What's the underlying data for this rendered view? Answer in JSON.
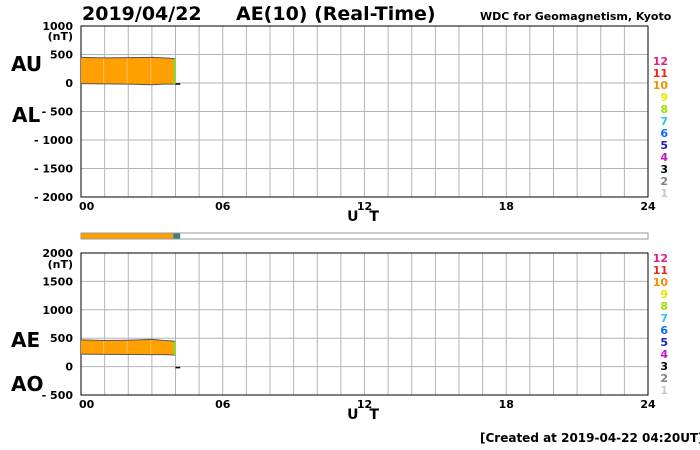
{
  "header": {
    "date": "2019/04/22",
    "title": "AE(10) (Real-Time)",
    "organization": "WDC for Geomagnetism, Kyoto"
  },
  "footer": {
    "created": "[Created at 2019-04-22 04:20UT]"
  },
  "colors": {
    "bar": "#ffa000",
    "last_segment": "#80e020",
    "station_bar_gap": "#408080",
    "grid": "#b4b4b4"
  },
  "station_legend": [
    {
      "label": "12",
      "color": "#e01e84"
    },
    {
      "label": "11",
      "color": "#e8281e"
    },
    {
      "label": "10",
      "color": "#f09000"
    },
    {
      "label": "9",
      "color": "#e8e800"
    },
    {
      "label": "8",
      "color": "#a0e000"
    },
    {
      "label": "7",
      "color": "#28c8e8"
    },
    {
      "label": "6",
      "color": "#0a6cf0"
    },
    {
      "label": "5",
      "color": "#2020b4"
    },
    {
      "label": "4",
      "color": "#c814c8"
    },
    {
      "label": "3",
      "color": "#000000"
    },
    {
      "label": "2",
      "color": "#808080"
    },
    {
      "label": "1",
      "color": "#c8c8c8"
    }
  ],
  "chart_data": [
    {
      "type": "area",
      "panel": "AU/AL",
      "ylabels": [
        "AU",
        "AL"
      ],
      "yunit": "(nT)",
      "xlabel": "U T",
      "ylim": [
        -2000,
        1000
      ],
      "yticks": [
        1000,
        500,
        0,
        -500,
        -1000,
        -1500,
        -2000
      ],
      "ytick_labels": [
        "1000",
        "500",
        "0",
        "- 500",
        "- 1000",
        "- 1500",
        "- 2000"
      ],
      "xlim": [
        0,
        24
      ],
      "xticks": [
        0,
        6,
        12,
        18,
        24
      ],
      "xtick_labels": [
        "00",
        "06",
        "12",
        "18",
        "24"
      ],
      "grid": true,
      "legend": "right",
      "series": [
        {
          "name": "AU",
          "x": [
            0,
            1,
            2,
            3,
            3.5,
            3.9,
            4.0
          ],
          "values": [
            450,
            440,
            445,
            450,
            440,
            430,
            420
          ]
        },
        {
          "name": "AL",
          "x": [
            0,
            1,
            2,
            3,
            3.5,
            3.9,
            4.0
          ],
          "values": [
            -10,
            -15,
            -20,
            -30,
            -20,
            -20,
            -15
          ]
        },
        {
          "name": "trailing",
          "x": [
            4.0,
            4.2
          ],
          "values": [
            0,
            0
          ]
        }
      ]
    },
    {
      "type": "area",
      "panel": "AE/AO",
      "ylabels": [
        "AE",
        "AO"
      ],
      "yunit": "(nT)",
      "xlabel": "U T",
      "ylim": [
        -500,
        2000
      ],
      "yticks": [
        2000,
        1500,
        1000,
        500,
        0,
        -500
      ],
      "ytick_labels": [
        "2000",
        "1500",
        "1000",
        "500",
        "0",
        "- 500"
      ],
      "xlim": [
        0,
        24
      ],
      "xticks": [
        0,
        6,
        12,
        18,
        24
      ],
      "xtick_labels": [
        "00",
        "06",
        "12",
        "18",
        "24"
      ],
      "grid": true,
      "legend": "right",
      "series": [
        {
          "name": "AE",
          "x": [
            0,
            1,
            2,
            3,
            3.5,
            3.9,
            4.0
          ],
          "values": [
            470,
            460,
            465,
            480,
            460,
            450,
            440
          ]
        },
        {
          "name": "AO",
          "x": [
            0,
            1,
            2,
            3,
            3.5,
            3.9,
            4.0
          ],
          "values": [
            220,
            215,
            212,
            210,
            210,
            205,
            200
          ]
        },
        {
          "name": "trailing",
          "x": [
            4.0,
            4.2
          ],
          "values": [
            0,
            0
          ]
        }
      ]
    }
  ],
  "station_bar": {
    "xlim": [
      0,
      24
    ],
    "segments": [
      {
        "from": 0,
        "to": 3.9,
        "color": "#ffa000"
      },
      {
        "from": 3.9,
        "to": 4.2,
        "color": "#408080"
      }
    ]
  }
}
